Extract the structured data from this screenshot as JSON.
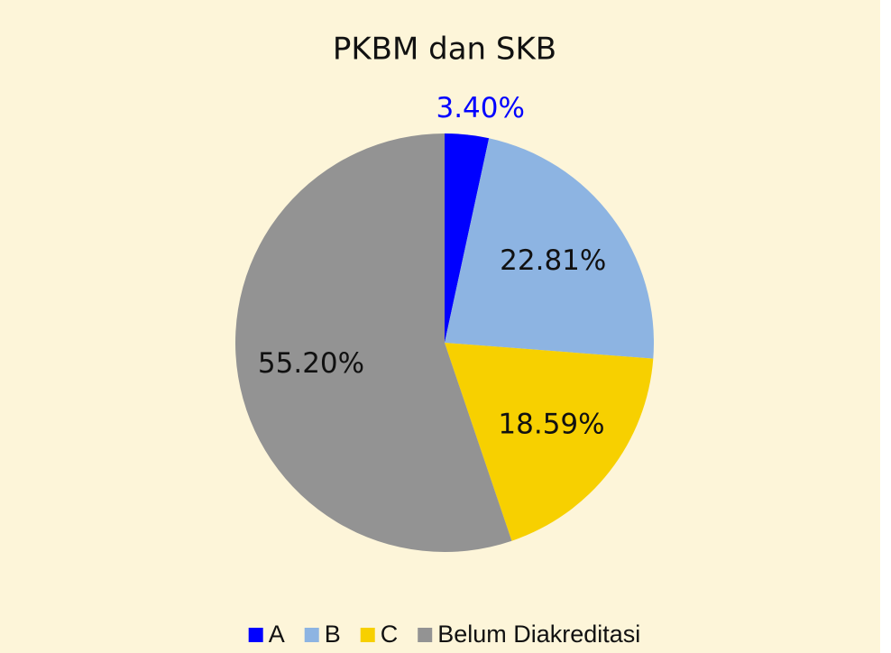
{
  "chart_data": {
    "type": "pie",
    "title": "PKBM dan SKB",
    "categories": [
      "A",
      "B",
      "C",
      "Belum Diakreditasi"
    ],
    "values": [
      3.4,
      22.81,
      18.59,
      55.2
    ],
    "value_labels": [
      "3.40%",
      "22.81%",
      "18.59%",
      "55.20%"
    ],
    "colors": [
      "#0000ff",
      "#8db4e2",
      "#f7d000",
      "#939393"
    ],
    "legend": "bottom"
  }
}
